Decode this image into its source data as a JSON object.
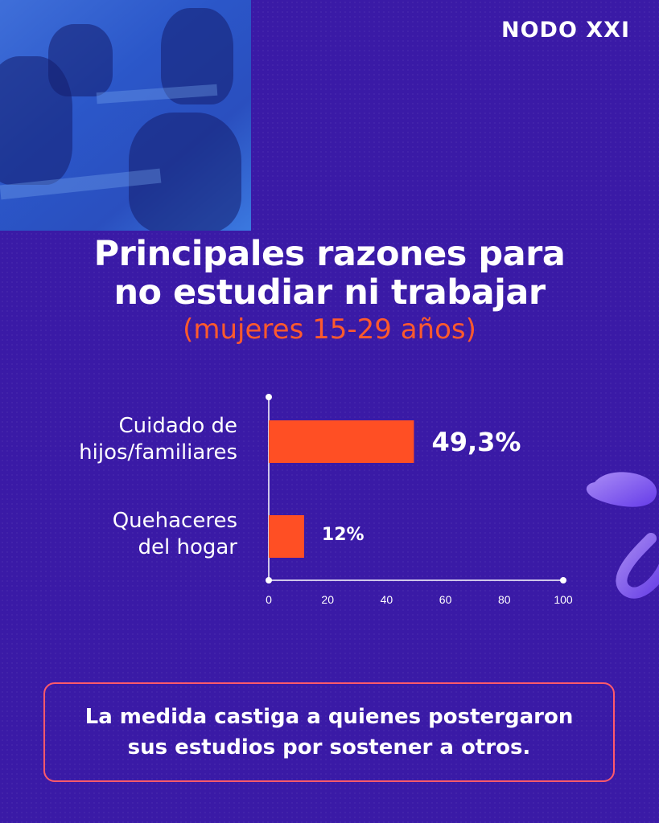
{
  "brand": {
    "logo_text": "NODO XXI"
  },
  "title": {
    "line1": "Principales razones para",
    "line2": "no estudiar ni trabajar"
  },
  "subtitle": "(mujeres 15-29 años)",
  "callout": {
    "line1": "La medida castiga a quienes postergaron",
    "line2": "sus estudios por sostener a otros."
  },
  "colors": {
    "background": "#3a1aa6",
    "bar": "#ff4f24",
    "accent_text": "#ff5a2c",
    "callout_border": "#ff5a6a"
  },
  "chart_data": {
    "type": "bar",
    "orientation": "horizontal",
    "categories": [
      {
        "line1": "Cuidado de",
        "line2": "hijos/familiares"
      },
      {
        "line1": "Quehaceres",
        "line2": "del hogar"
      }
    ],
    "values": [
      49.3,
      12
    ],
    "value_labels": [
      "49,3%",
      "12%"
    ],
    "xlim": [
      0,
      100
    ],
    "xticks": [
      "0",
      "20",
      "40",
      "60",
      "80",
      "100"
    ],
    "xtick_values": [
      0,
      20,
      40,
      60,
      80,
      100
    ]
  }
}
